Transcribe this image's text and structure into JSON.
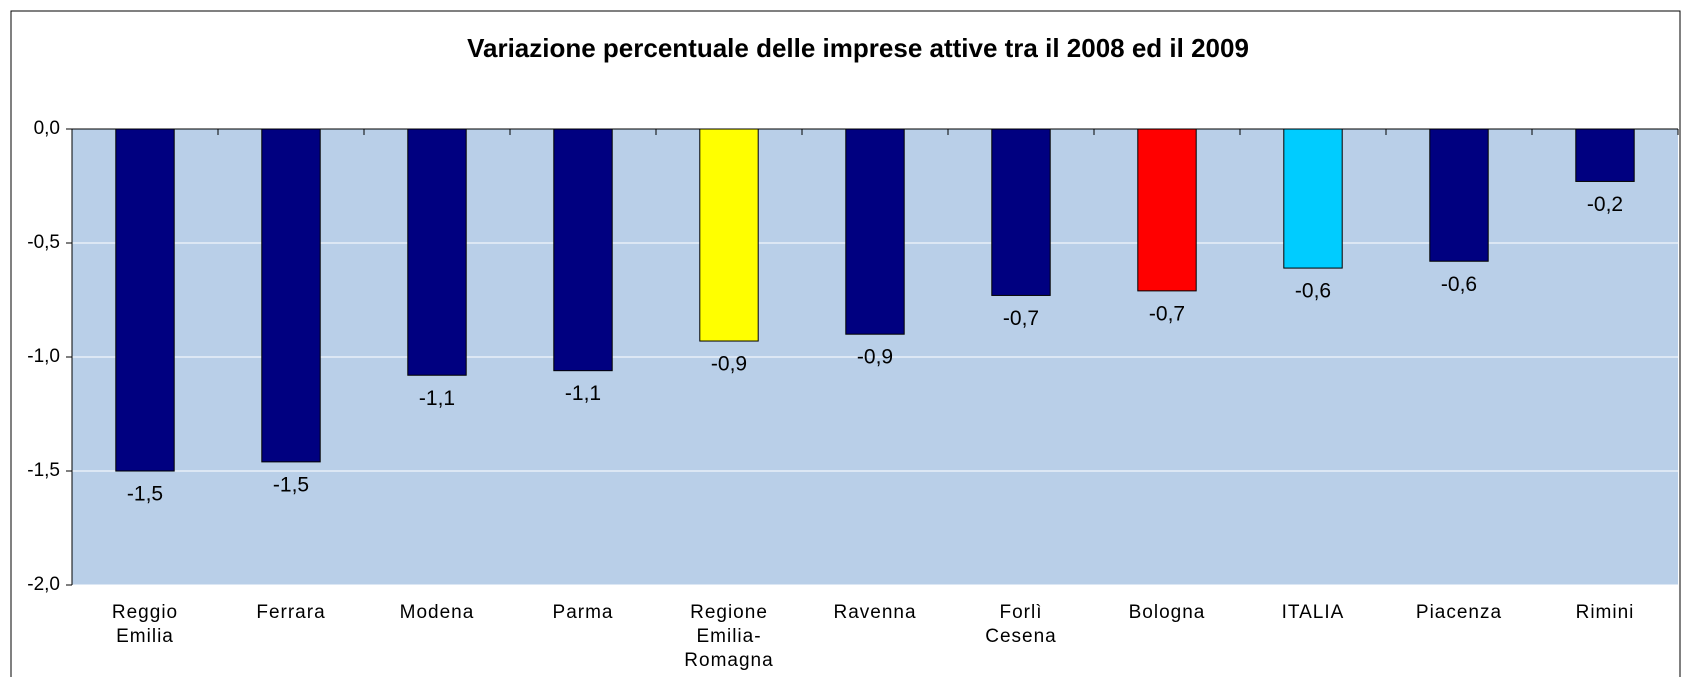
{
  "chart_data": {
    "type": "bar",
    "title": "Variazione percentuale delle imprese attive tra il 2008 ed il 2009",
    "categories": [
      "Reggio Emilia",
      "Ferrara",
      "Modena",
      "Parma",
      "Regione Emilia-Romagna",
      "Ravenna",
      "Forlì Cesena",
      "Bologna",
      "ITALIA",
      "Piacenza",
      "Rimini"
    ],
    "values": [
      -1.5,
      -1.46,
      -1.08,
      -1.06,
      -0.93,
      -0.9,
      -0.73,
      -0.71,
      -0.61,
      -0.58,
      -0.23
    ],
    "value_labels": [
      "-1,5",
      "-1,5",
      "-1,1",
      "-1,1",
      "-0,9",
      "-0,9",
      "-0,7",
      "-0,7",
      "-0,6",
      "-0,6",
      "-0,2"
    ],
    "colors": [
      "#000080",
      "#000080",
      "#000080",
      "#000080",
      "#ffff00",
      "#000080",
      "#000080",
      "#ff0000",
      "#00ccff",
      "#000080",
      "#000080"
    ],
    "ylim": [
      -2,
      0
    ],
    "yticks": [
      {
        "value": 0,
        "label": "0,0"
      },
      {
        "value": -0.5,
        "label": "-0,5"
      },
      {
        "value": -1,
        "label": "-1,0"
      },
      {
        "value": -1.5,
        "label": "-1,5"
      },
      {
        "value": -2,
        "label": "-2,0"
      }
    ],
    "grid": true,
    "plot_background": "#b9cfe8"
  }
}
